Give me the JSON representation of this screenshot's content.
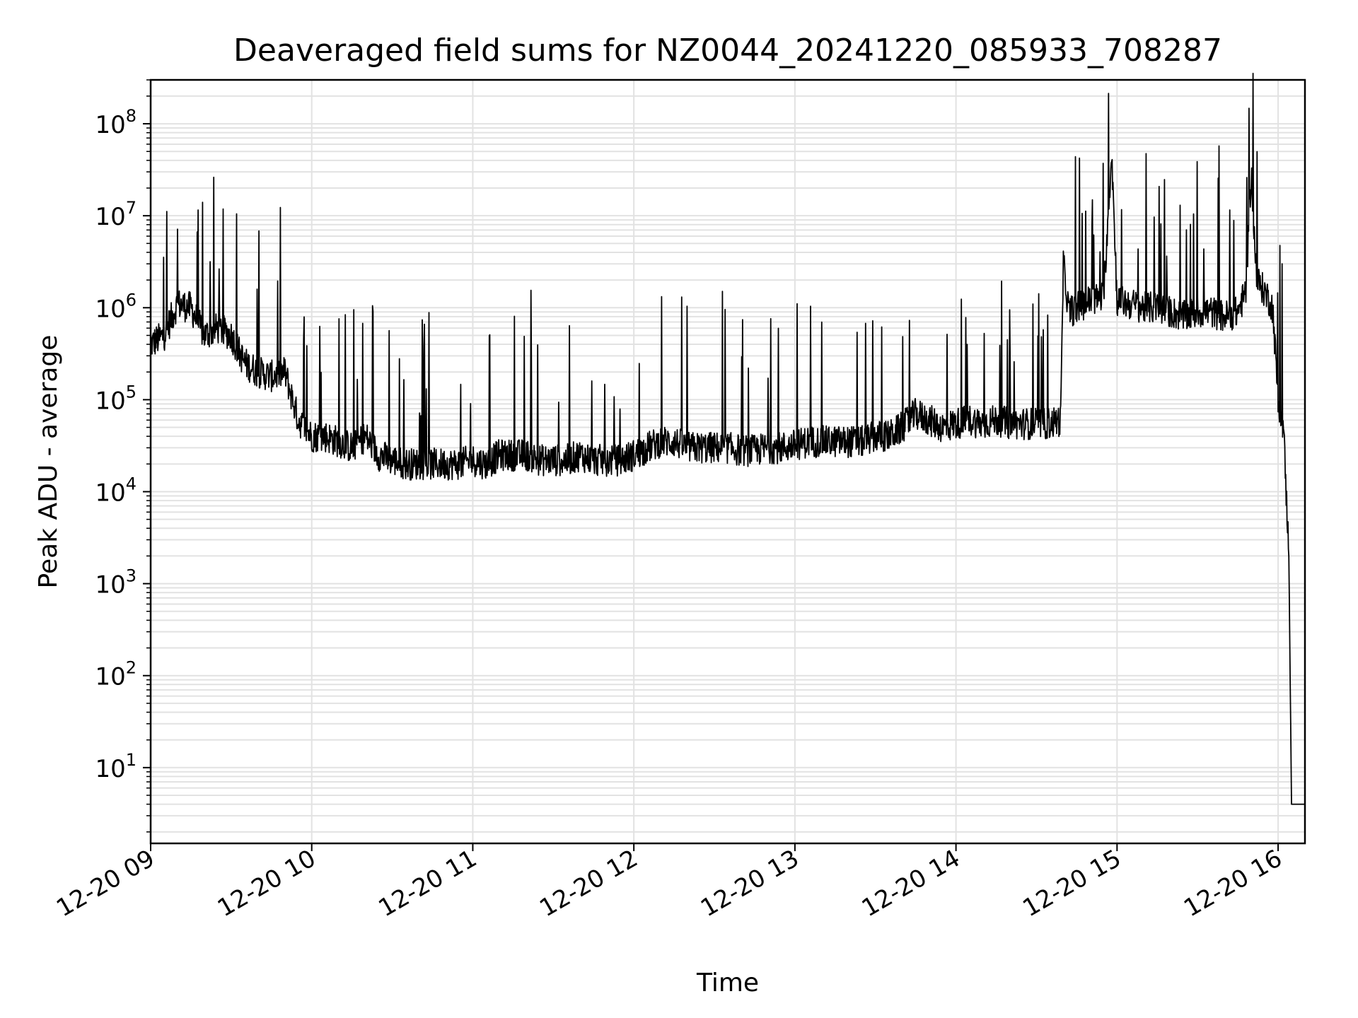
{
  "chart_data": {
    "type": "line",
    "title": "Deaveraged field sums for NZ0044_20241220_085933_708287",
    "xlabel": "Time",
    "ylabel": "Peak ADU - average",
    "x_tick_labels": [
      "12-20 09",
      "12-20 10",
      "12-20 11",
      "12-20 12",
      "12-20 13",
      "12-20 14",
      "12-20 15",
      "12-20 16"
    ],
    "y_scale": "log",
    "y_tick_values": [
      10,
      100,
      1000,
      10000,
      100000,
      1000000,
      10000000,
      100000000
    ],
    "y_tick_mantissa": "10",
    "y_tick_exponents": [
      "1",
      "2",
      "3",
      "4",
      "5",
      "6",
      "7",
      "8"
    ],
    "xlim": [
      "2024-12-20 09:00",
      "2024-12-20 16:10"
    ],
    "ylim": [
      1.5,
      300000000
    ],
    "grid": true,
    "line_color": "#000000",
    "series": [
      {
        "x": [
          "2024-12-20 09:00",
          "2024-12-20 09:05",
          "2024-12-20 09:10",
          "2024-12-20 09:15",
          "2024-12-20 09:20",
          "2024-12-20 09:25",
          "2024-12-20 09:30",
          "2024-12-20 09:35",
          "2024-12-20 09:40",
          "2024-12-20 09:45",
          "2024-12-20 09:50",
          "2024-12-20 09:55",
          "2024-12-20 10:00",
          "2024-12-20 10:05",
          "2024-12-20 10:10",
          "2024-12-20 10:15",
          "2024-12-20 10:20",
          "2024-12-20 10:25",
          "2024-12-20 10:30",
          "2024-12-20 10:35",
          "2024-12-20 10:40",
          "2024-12-20 10:45",
          "2024-12-20 10:50",
          "2024-12-20 10:55",
          "2024-12-20 11:00",
          "2024-12-20 11:05",
          "2024-12-20 11:10",
          "2024-12-20 11:15",
          "2024-12-20 11:20",
          "2024-12-20 11:25",
          "2024-12-20 11:30",
          "2024-12-20 11:35",
          "2024-12-20 11:40",
          "2024-12-20 11:45",
          "2024-12-20 11:50",
          "2024-12-20 11:55",
          "2024-12-20 12:00",
          "2024-12-20 12:05",
          "2024-12-20 12:10",
          "2024-12-20 12:15",
          "2024-12-20 12:20",
          "2024-12-20 12:25",
          "2024-12-20 12:30",
          "2024-12-20 12:35",
          "2024-12-20 12:40",
          "2024-12-20 12:45",
          "2024-12-20 12:50",
          "2024-12-20 12:55",
          "2024-12-20 13:00",
          "2024-12-20 13:05",
          "2024-12-20 13:10",
          "2024-12-20 13:15",
          "2024-12-20 13:20",
          "2024-12-20 13:25",
          "2024-12-20 13:30",
          "2024-12-20 13:35",
          "2024-12-20 13:40",
          "2024-12-20 13:45",
          "2024-12-20 13:50",
          "2024-12-20 13:55",
          "2024-12-20 14:00",
          "2024-12-20 14:05",
          "2024-12-20 14:10",
          "2024-12-20 14:15",
          "2024-12-20 14:20",
          "2024-12-20 14:25",
          "2024-12-20 14:30",
          "2024-12-20 14:35",
          "2024-12-20 14:39",
          "2024-12-20 14:40",
          "2024-12-20 14:42",
          "2024-12-20 14:45",
          "2024-12-20 14:50",
          "2024-12-20 14:55",
          "2024-12-20 14:58",
          "2024-12-20 15:00",
          "2024-12-20 15:05",
          "2024-12-20 15:10",
          "2024-12-20 15:15",
          "2024-12-20 15:20",
          "2024-12-20 15:25",
          "2024-12-20 15:30",
          "2024-12-20 15:35",
          "2024-12-20 15:40",
          "2024-12-20 15:45",
          "2024-12-20 15:48",
          "2024-12-20 15:50",
          "2024-12-20 15:52",
          "2024-12-20 15:55",
          "2024-12-20 15:58",
          "2024-12-20 16:00",
          "2024-12-20 16:02",
          "2024-12-20 16:04",
          "2024-12-20 16:05",
          "2024-12-20 16:10"
        ],
        "y": [
          400000,
          500000,
          1100000,
          1000000,
          500000,
          600000,
          500000,
          250000,
          200000,
          180000,
          200000,
          60000,
          40000,
          40000,
          35000,
          30000,
          40000,
          25000,
          22000,
          20000,
          20000,
          20000,
          20000,
          20000,
          22000,
          20000,
          25000,
          25000,
          25000,
          22000,
          22000,
          22000,
          25000,
          22000,
          22000,
          22000,
          25000,
          30000,
          35000,
          35000,
          30000,
          30000,
          30000,
          30000,
          28000,
          28000,
          30000,
          30000,
          32000,
          35000,
          35000,
          35000,
          35000,
          35000,
          40000,
          40000,
          50000,
          70000,
          60000,
          50000,
          55000,
          60000,
          55000,
          60000,
          55000,
          55000,
          55000,
          55000,
          60000,
          3000000,
          900000,
          1000000,
          1200000,
          1300000,
          50000000,
          1200000,
          1100000,
          1000000,
          1000000,
          900000,
          800000,
          900000,
          900000,
          800000,
          900000,
          1500000,
          30000000,
          2000000,
          1500000,
          1000000,
          100000,
          50000,
          2000,
          4,
          4
        ]
      }
    ]
  }
}
